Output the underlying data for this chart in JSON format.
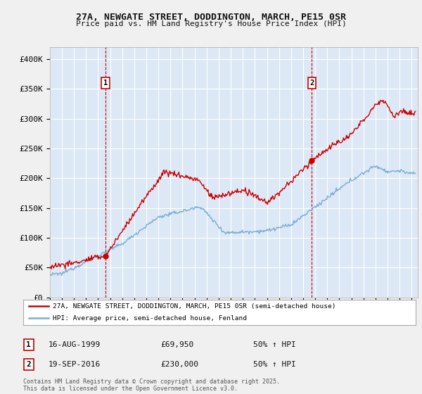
{
  "title_line1": "27A, NEWGATE STREET, DODDINGTON, MARCH, PE15 0SR",
  "title_line2": "Price paid vs. HM Land Registry's House Price Index (HPI)",
  "background_color": "#f0f0f0",
  "plot_background": "#dce8f5",
  "grid_color": "#ffffff",
  "red_color": "#cc0000",
  "blue_color": "#7aadd4",
  "legend_label_red": "27A, NEWGATE STREET, DODDINGTON, MARCH, PE15 0SR (semi-detached house)",
  "legend_label_blue": "HPI: Average price, semi-detached house, Fenland",
  "marker1_label": "1",
  "marker1_date": "16-AUG-1999",
  "marker1_price": "£69,950",
  "marker1_hpi": "50% ↑ HPI",
  "marker1_x": 1999.62,
  "marker1_y": 69950,
  "marker1_chart_y": 350000,
  "marker2_label": "2",
  "marker2_date": "19-SEP-2016",
  "marker2_price": "£230,000",
  "marker2_hpi": "50% ↑ HPI",
  "marker2_x": 2016.72,
  "marker2_y": 230000,
  "marker2_chart_y": 350000,
  "xmin": 1995,
  "xmax": 2025.5,
  "ymin": 0,
  "ymax": 420000,
  "yticks": [
    0,
    50000,
    100000,
    150000,
    200000,
    250000,
    300000,
    350000,
    400000
  ],
  "ytick_labels": [
    "£0",
    "£50K",
    "£100K",
    "£150K",
    "£200K",
    "£250K",
    "£300K",
    "£350K",
    "£400K"
  ],
  "footer_text": "Contains HM Land Registry data © Crown copyright and database right 2025.\nThis data is licensed under the Open Government Licence v3.0.",
  "dashed_x1": 1999.62,
  "dashed_x2": 2016.72
}
